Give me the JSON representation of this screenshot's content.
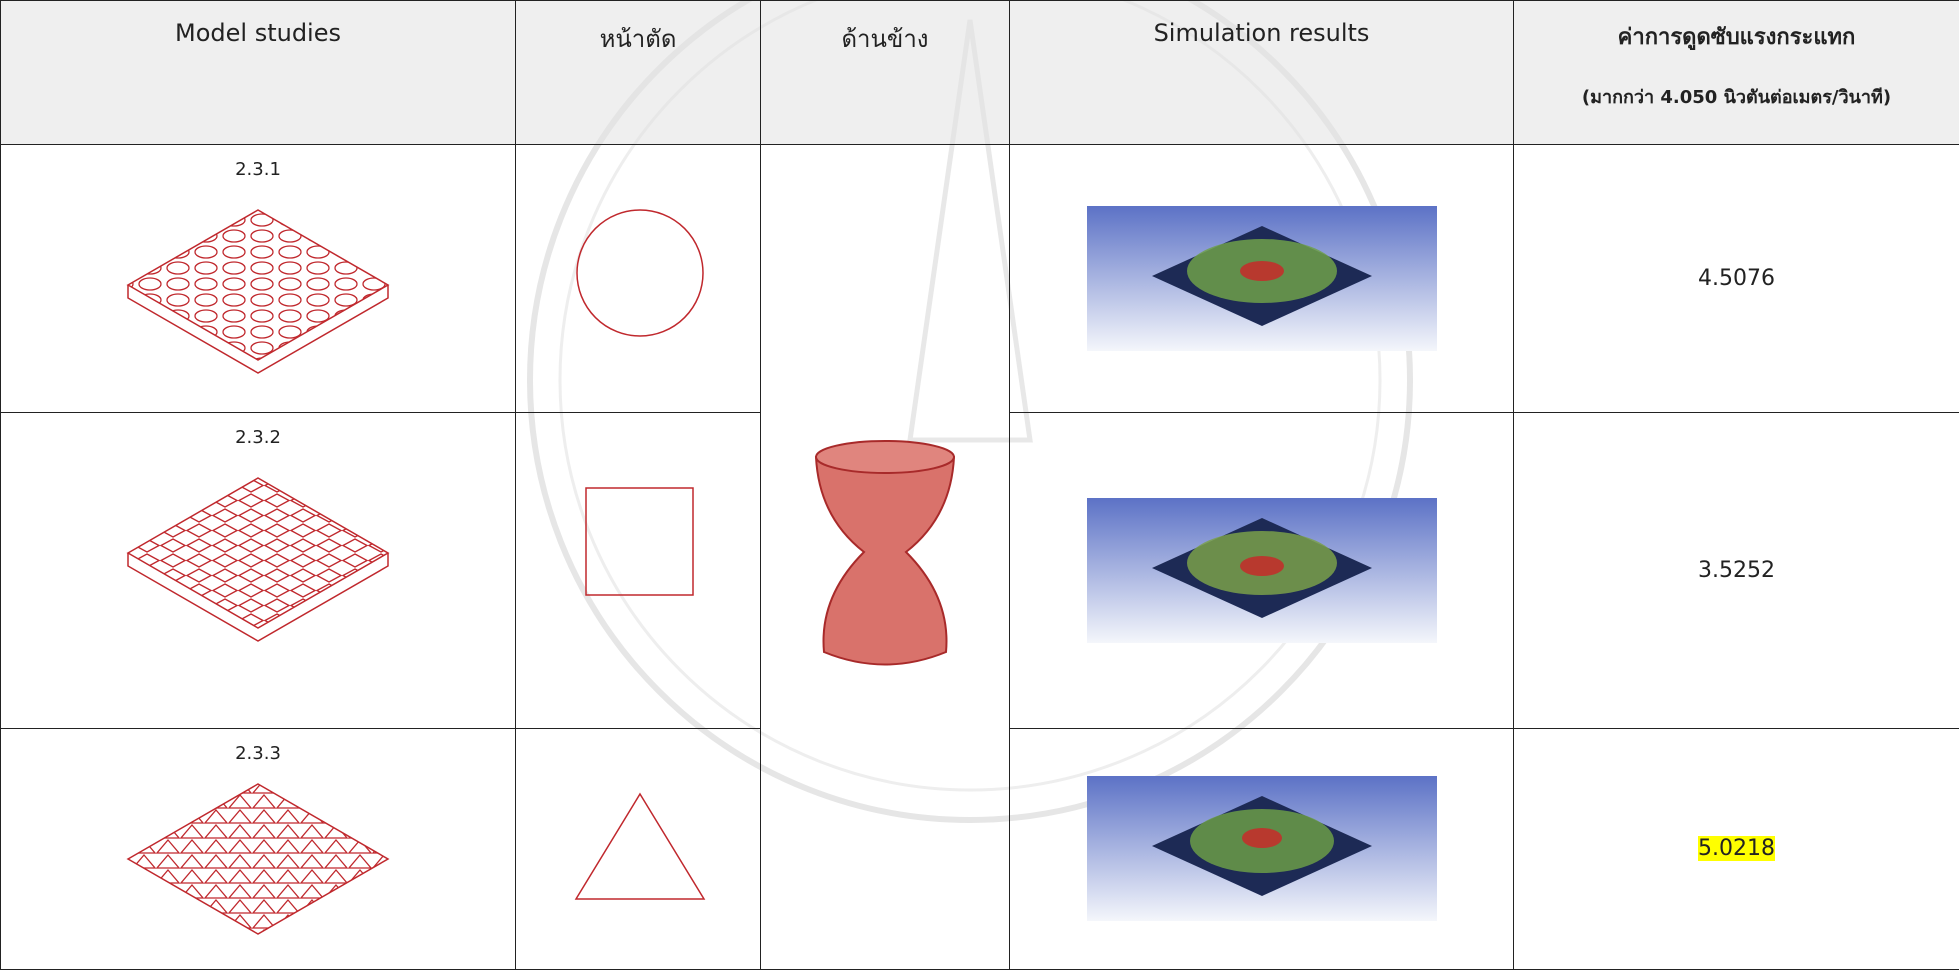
{
  "table": {
    "columns": [
      "Model studies",
      "หน้าตัด",
      "ด้านข้าง",
      "Simulation results",
      "ค่าการดูดซับแรงกระแทก"
    ],
    "criterion": "(มากกว่า 4.050 นิวตันต่อเมตร/วินาที)",
    "rows": [
      {
        "model": "2.3.1",
        "value": "4.5076"
      },
      {
        "model": "2.3.2",
        "value": "3.5252"
      },
      {
        "model": "2.3.3",
        "value": "5.0218"
      }
    ]
  }
}
